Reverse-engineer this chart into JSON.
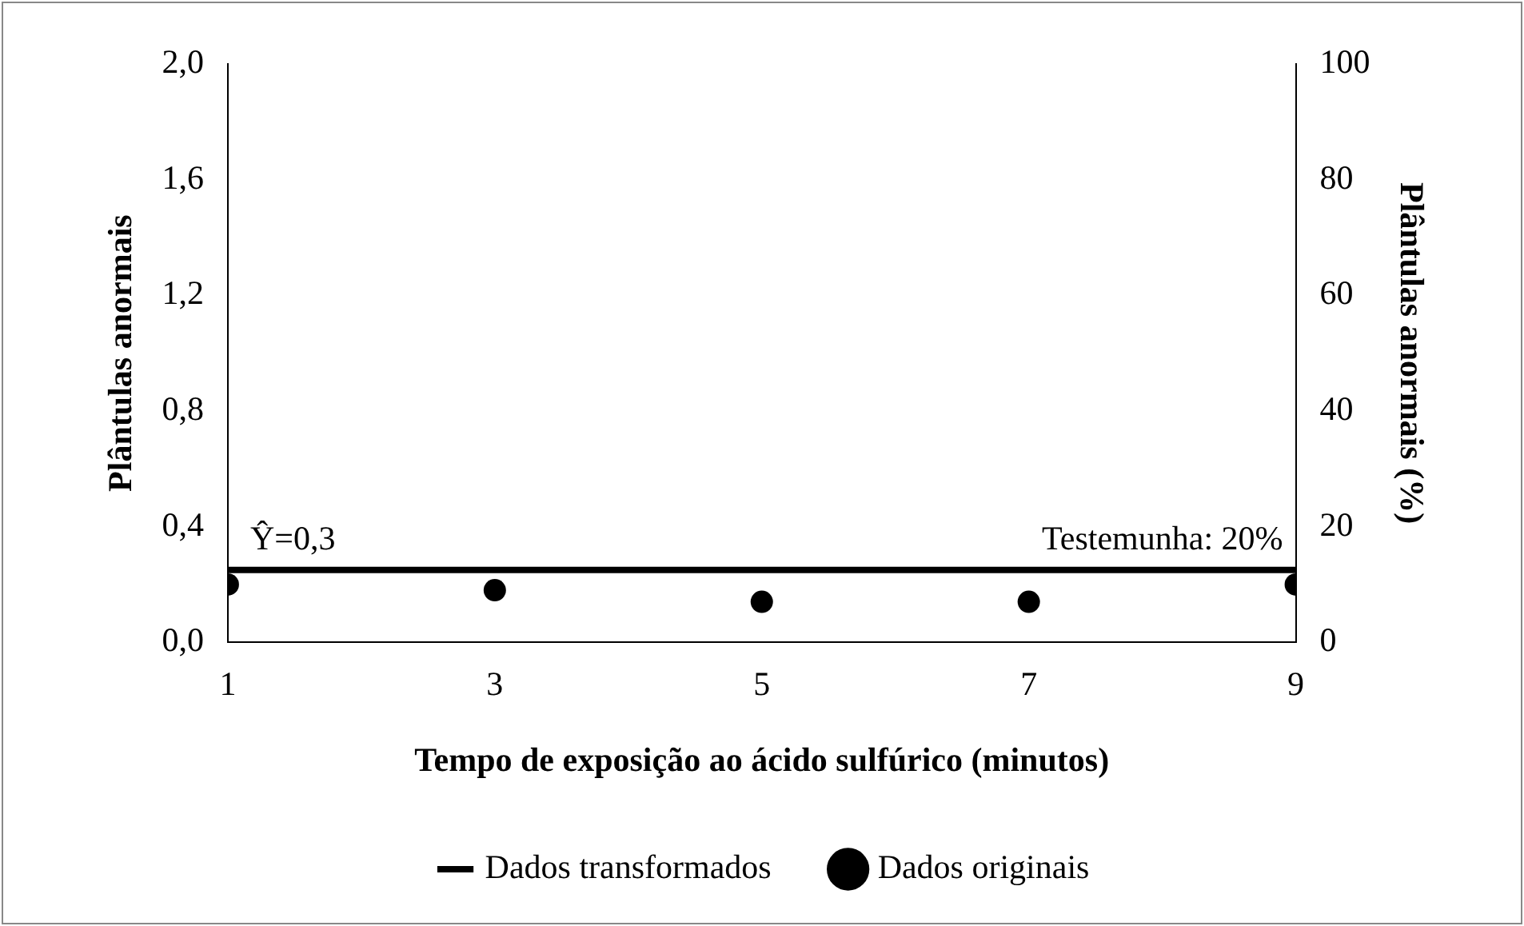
{
  "chart_data": {
    "type": "line",
    "xlabel": "Tempo de exposição ao ácido sulfúrico (minutos)",
    "ylabel": "Plântulas anormais",
    "y2label": "Plântulas anormais (%)",
    "xlim": [
      1,
      9
    ],
    "xticks": [
      1,
      3,
      5,
      7,
      9
    ],
    "ylim": [
      0,
      2
    ],
    "yticks": [
      {
        "value": 0,
        "label": "0,0"
      },
      {
        "value": 0.4,
        "label": "0,4"
      },
      {
        "value": 0.8,
        "label": "0,8"
      },
      {
        "value": 1.2,
        "label": "1,2"
      },
      {
        "value": 1.6,
        "label": "1,6"
      },
      {
        "value": 2,
        "label": "2,0"
      }
    ],
    "y2lim": [
      0,
      100
    ],
    "y2ticks": [
      0,
      20,
      40,
      60,
      80,
      100
    ],
    "x": [
      1,
      3,
      5,
      7,
      9
    ],
    "series": [
      {
        "name": "Dados transformados",
        "type": "line",
        "color": "#000000",
        "marker": "none",
        "line_style": "solid",
        "x": [
          1,
          9
        ],
        "values": [
          0.25,
          0.25
        ]
      },
      {
        "name": "Dados originais",
        "type": "scatter",
        "color": "#000000",
        "marker": "circle",
        "values": [
          0.2,
          0.18,
          0.14,
          0.14,
          0.2
        ]
      }
    ],
    "annotations": [
      "Ŷ=0,3",
      "Testemunha: 20%"
    ],
    "grid": false,
    "legend": "bottom"
  }
}
